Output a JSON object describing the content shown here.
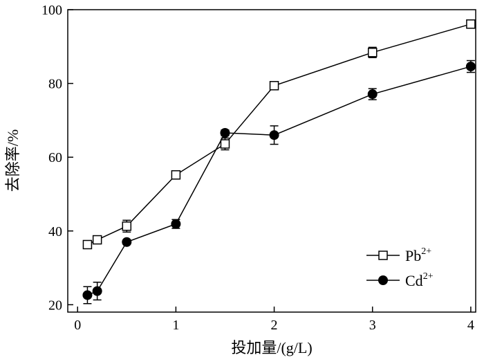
{
  "chart_data": {
    "type": "line",
    "xlabel": "投加量/(g/L)",
    "ylabel": "去除率/%",
    "xlim": [
      -0.1,
      4.05
    ],
    "ylim": [
      18,
      100
    ],
    "xticks": [
      0,
      1,
      2,
      3,
      4
    ],
    "yticks": [
      20,
      40,
      60,
      80,
      100
    ],
    "grid": false,
    "legend_position": "bottom-right",
    "x": [
      0.1,
      0.2,
      0.5,
      1.0,
      1.5,
      2.0,
      3.0,
      4.0
    ],
    "series": [
      {
        "name": "Pb",
        "name_superscript": "2+",
        "marker": "open-square",
        "values": [
          36.3,
          37.6,
          41.3,
          55.2,
          63.6,
          79.4,
          88.4,
          96.1
        ],
        "errors": [
          1.0,
          1.0,
          1.6,
          1.1,
          1.6,
          0.8,
          1.4,
          0.6
        ]
      },
      {
        "name": "Cd",
        "name_superscript": "2+",
        "marker": "filled-circle",
        "values": [
          22.6,
          23.7,
          37.0,
          41.9,
          66.6,
          66.0,
          77.1,
          84.6
        ],
        "errors": [
          2.3,
          2.4,
          0.5,
          1.2,
          0.8,
          2.5,
          1.5,
          1.6
        ]
      }
    ]
  }
}
